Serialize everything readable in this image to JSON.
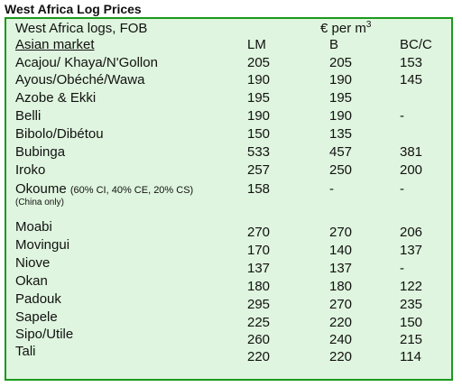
{
  "title": "West Africa Log Prices",
  "header": {
    "label": "West Africa logs, FOB",
    "unit_text": "€ per m",
    "unit_sup": "3",
    "market": "Asian market",
    "col_lm": "LM",
    "col_b": "B",
    "col_bc": "BC/C"
  },
  "rows": [
    {
      "name": "Acajou/ Khaya/N'Gollon",
      "lm": "205",
      "b": "205",
      "bc": "153"
    },
    {
      "name": "Ayous/Obéché/Wawa",
      "lm": "190",
      "b": "190",
      "bc": "145"
    },
    {
      "name": "Azobe & Ekki",
      "lm": "195",
      "b": "195",
      "bc": ""
    },
    {
      "name": "Belli",
      "lm": "190",
      "b": "190",
      "bc": "-"
    },
    {
      "name": "Bibolo/Dibétou",
      "lm": "150",
      "b": "135",
      "bc": ""
    },
    {
      "name": "Bubinga",
      "lm": "533",
      "b": "457",
      "bc": "381"
    },
    {
      "name": "Iroko",
      "lm": "257",
      "b": "250",
      "bc": "200"
    },
    {
      "name": "Okoume",
      "note": "(60% CI, 40% CE, 20% CS)",
      "note2": "(China only)",
      "lm": "158",
      "b": "-",
      "bc": "-"
    },
    {
      "name": "Moabi",
      "lm": "270",
      "b": "270",
      "bc": "206"
    },
    {
      "name": "Movingui",
      "lm": "170",
      "b": "140",
      "bc": "137"
    },
    {
      "name": "Niove",
      "lm": "137",
      "b": "137",
      "bc": "-"
    },
    {
      "name": "Okan",
      "lm": "180",
      "b": "180",
      "bc": "122"
    },
    {
      "name": "Padouk",
      "lm": "295",
      "b": "270",
      "bc": "235"
    },
    {
      "name": "Sapele",
      "lm": "225",
      "b": "220",
      "bc": "150"
    },
    {
      "name": "Sipo/Utile",
      "lm": "260",
      "b": "240",
      "bc": "215"
    },
    {
      "name": "Tali",
      "lm": "220",
      "b": "220",
      "bc": "114"
    }
  ]
}
